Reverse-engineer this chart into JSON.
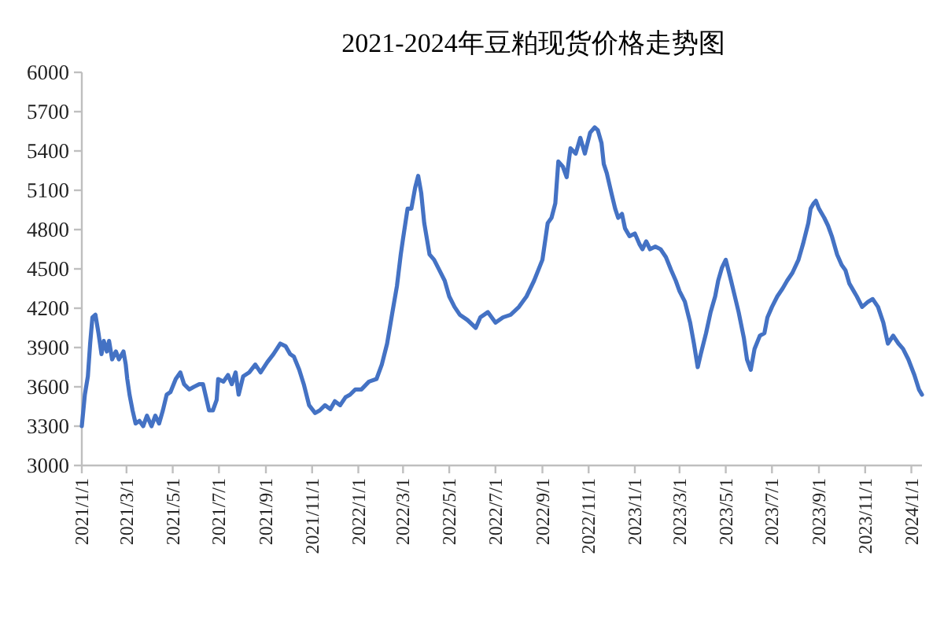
{
  "chart_data": {
    "type": "line",
    "title": "2021-2024年豆粕现货价格走势图",
    "xlim": [
      "2021-01-01",
      "2024-01-15"
    ],
    "xticks": [
      {
        "value": "2021-01-01",
        "label": "2021/1/1"
      },
      {
        "value": "2021-03-01",
        "label": "2021/3/1"
      },
      {
        "value": "2021-05-01",
        "label": "2021/5/1"
      },
      {
        "value": "2021-07-01",
        "label": "2021/7/1"
      },
      {
        "value": "2021-09-01",
        "label": "2021/9/1"
      },
      {
        "value": "2021-11-01",
        "label": "2021/11/1"
      },
      {
        "value": "2022-01-01",
        "label": "2022/1/1"
      },
      {
        "value": "2022-03-01",
        "label": "2022/3/1"
      },
      {
        "value": "2022-05-01",
        "label": "2022/5/1"
      },
      {
        "value": "2022-07-01",
        "label": "2022/7/1"
      },
      {
        "value": "2022-09-01",
        "label": "2022/9/1"
      },
      {
        "value": "2022-11-01",
        "label": "2022/11/1"
      },
      {
        "value": "2023-01-01",
        "label": "2023/1/1"
      },
      {
        "value": "2023-03-01",
        "label": "2023/3/1"
      },
      {
        "value": "2023-05-01",
        "label": "2023/5/1"
      },
      {
        "value": "2023-07-01",
        "label": "2023/7/1"
      },
      {
        "value": "2023-09-01",
        "label": "2023/9/1"
      },
      {
        "value": "2023-11-01",
        "label": "2023/11/1"
      },
      {
        "value": "2024-01-01",
        "label": "2024/1/1"
      }
    ],
    "ylim": [
      3000,
      6000
    ],
    "yticks": [
      3000,
      3300,
      3600,
      3900,
      4200,
      4500,
      4800,
      5100,
      5400,
      5700,
      6000
    ],
    "x": [
      "2021-01-01",
      "2021-01-05",
      "2021-01-09",
      "2021-01-12",
      "2021-01-15",
      "2021-01-19",
      "2021-01-23",
      "2021-01-27",
      "2021-01-30",
      "2021-02-03",
      "2021-02-06",
      "2021-02-10",
      "2021-02-15",
      "2021-02-19",
      "2021-02-25",
      "2021-02-28",
      "2021-03-02",
      "2021-03-05",
      "2021-03-09",
      "2021-03-13",
      "2021-03-18",
      "2021-03-23",
      "2021-03-28",
      "2021-04-03",
      "2021-04-08",
      "2021-04-13",
      "2021-04-18",
      "2021-04-23",
      "2021-04-28",
      "2021-05-05",
      "2021-05-11",
      "2021-05-16",
      "2021-05-23",
      "2021-05-29",
      "2021-06-05",
      "2021-06-10",
      "2021-06-14",
      "2021-06-18",
      "2021-06-23",
      "2021-06-28",
      "2021-06-30",
      "2021-07-07",
      "2021-07-13",
      "2021-07-18",
      "2021-07-23",
      "2021-07-27",
      "2021-08-02",
      "2021-08-10",
      "2021-08-18",
      "2021-08-25",
      "2021-09-03",
      "2021-09-11",
      "2021-09-20",
      "2021-09-27",
      "2021-10-03",
      "2021-10-08",
      "2021-10-15",
      "2021-10-21",
      "2021-10-28",
      "2021-11-05",
      "2021-11-11",
      "2021-11-18",
      "2021-11-25",
      "2021-12-01",
      "2021-12-08",
      "2021-12-15",
      "2021-12-21",
      "2021-12-28",
      "2022-01-05",
      "2022-01-15",
      "2022-01-25",
      "2022-02-01",
      "2022-02-08",
      "2022-02-15",
      "2022-02-21",
      "2022-02-26",
      "2022-03-01",
      "2022-03-07",
      "2022-03-12",
      "2022-03-17",
      "2022-03-21",
      "2022-03-25",
      "2022-03-29",
      "2022-04-05",
      "2022-04-11",
      "2022-04-18",
      "2022-04-25",
      "2022-05-01",
      "2022-05-08",
      "2022-05-15",
      "2022-05-25",
      "2022-06-05",
      "2022-06-11",
      "2022-06-21",
      "2022-07-01",
      "2022-07-11",
      "2022-07-21",
      "2022-08-01",
      "2022-08-11",
      "2022-08-21",
      "2022-09-01",
      "2022-09-08",
      "2022-09-13",
      "2022-09-18",
      "2022-09-22",
      "2022-09-28",
      "2022-10-03",
      "2022-10-08",
      "2022-10-15",
      "2022-10-21",
      "2022-10-27",
      "2022-11-03",
      "2022-11-09",
      "2022-11-13",
      "2022-11-18",
      "2022-11-21",
      "2022-11-25",
      "2022-12-01",
      "2022-12-06",
      "2022-12-10",
      "2022-12-15",
      "2022-12-19",
      "2022-12-25",
      "2023-01-01",
      "2023-01-07",
      "2023-01-11",
      "2023-01-16",
      "2023-01-21",
      "2023-01-28",
      "2023-02-04",
      "2023-02-11",
      "2023-02-18",
      "2023-02-24",
      "2023-03-01",
      "2023-03-08",
      "2023-03-15",
      "2023-03-20",
      "2023-03-25",
      "2023-03-29",
      "2023-04-05",
      "2023-04-11",
      "2023-04-17",
      "2023-04-21",
      "2023-04-26",
      "2023-05-01",
      "2023-05-08",
      "2023-05-13",
      "2023-05-18",
      "2023-05-25",
      "2023-05-29",
      "2023-06-03",
      "2023-06-08",
      "2023-06-15",
      "2023-06-21",
      "2023-06-25",
      "2023-07-01",
      "2023-07-08",
      "2023-07-15",
      "2023-07-21",
      "2023-07-28",
      "2023-08-05",
      "2023-08-11",
      "2023-08-18",
      "2023-08-21",
      "2023-08-25",
      "2023-08-28",
      "2023-09-01",
      "2023-09-05",
      "2023-09-08",
      "2023-09-13",
      "2023-09-18",
      "2023-09-25",
      "2023-10-01",
      "2023-10-06",
      "2023-10-11",
      "2023-10-17",
      "2023-10-21",
      "2023-10-28",
      "2023-11-05",
      "2023-11-11",
      "2023-11-18",
      "2023-11-25",
      "2023-12-01",
      "2023-12-08",
      "2023-12-15",
      "2023-12-21",
      "2023-12-28",
      "2024-01-05",
      "2024-01-11",
      "2024-01-15"
    ],
    "series": [
      {
        "color": "#4472c4",
        "values": [
          3300,
          3540,
          3680,
          3930,
          4130,
          4150,
          4010,
          3850,
          3950,
          3870,
          3950,
          3810,
          3870,
          3810,
          3870,
          3770,
          3660,
          3540,
          3420,
          3320,
          3340,
          3300,
          3380,
          3300,
          3380,
          3320,
          3420,
          3540,
          3560,
          3660,
          3710,
          3620,
          3580,
          3600,
          3620,
          3620,
          3520,
          3420,
          3420,
          3500,
          3660,
          3640,
          3690,
          3620,
          3710,
          3540,
          3680,
          3710,
          3770,
          3710,
          3790,
          3850,
          3930,
          3910,
          3850,
          3830,
          3730,
          3620,
          3460,
          3400,
          3420,
          3460,
          3430,
          3490,
          3460,
          3520,
          3540,
          3580,
          3580,
          3640,
          3660,
          3770,
          3930,
          4170,
          4370,
          4610,
          4730,
          4960,
          4960,
          5120,
          5210,
          5080,
          4850,
          4610,
          4570,
          4490,
          4410,
          4290,
          4210,
          4150,
          4110,
          4050,
          4130,
          4170,
          4090,
          4130,
          4150,
          4210,
          4290,
          4410,
          4570,
          4850,
          4890,
          5000,
          5320,
          5280,
          5200,
          5420,
          5380,
          5500,
          5380,
          5540,
          5580,
          5560,
          5460,
          5300,
          5230,
          5080,
          4960,
          4890,
          4920,
          4810,
          4750,
          4770,
          4690,
          4650,
          4710,
          4650,
          4670,
          4650,
          4590,
          4490,
          4410,
          4330,
          4250,
          4090,
          3930,
          3750,
          3850,
          4010,
          4170,
          4290,
          4410,
          4510,
          4570,
          4410,
          4290,
          4170,
          3970,
          3810,
          3730,
          3890,
          3990,
          4010,
          4130,
          4210,
          4290,
          4350,
          4410,
          4470,
          4570,
          4690,
          4850,
          4960,
          5000,
          5020,
          4960,
          4920,
          4890,
          4830,
          4750,
          4610,
          4530,
          4490,
          4390,
          4330,
          4290,
          4210,
          4250,
          4270,
          4210,
          4090,
          3930,
          3990,
          3930,
          3890,
          3810,
          3690,
          3580,
          3540
        ]
      }
    ]
  }
}
